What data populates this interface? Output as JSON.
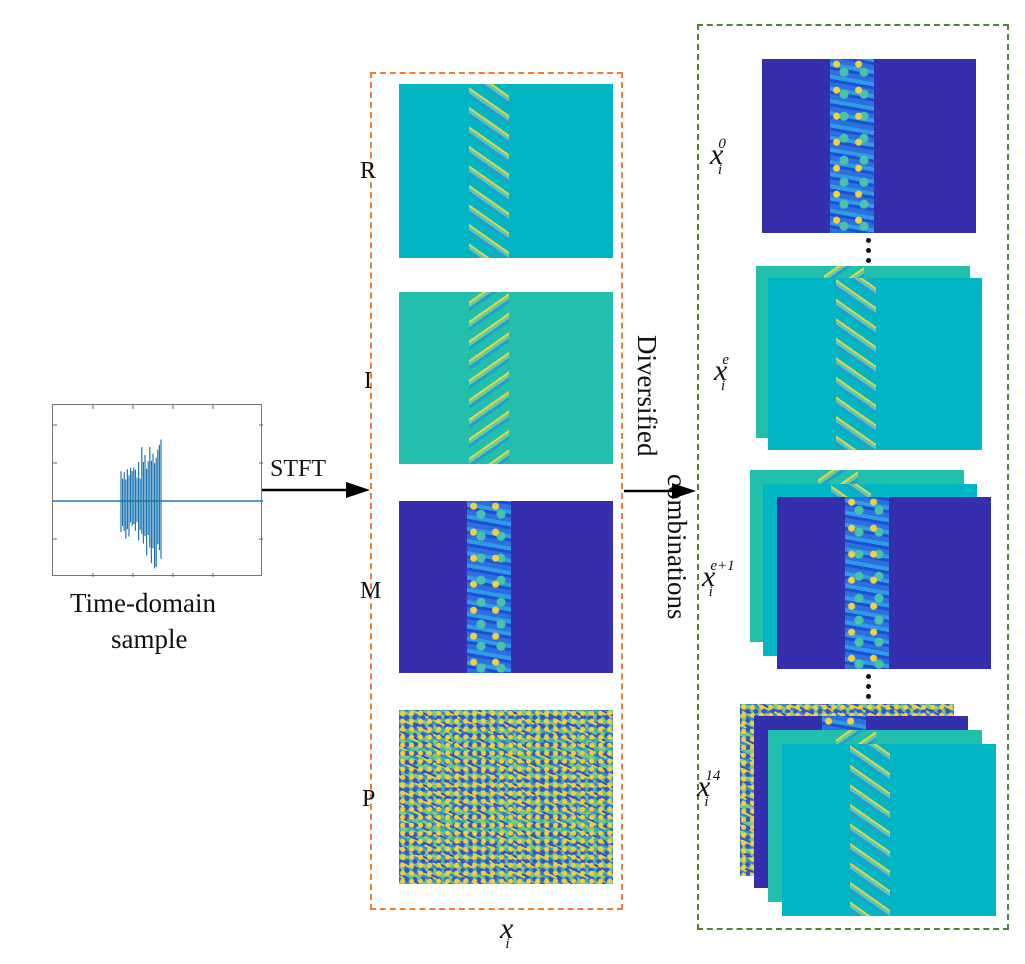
{
  "signal": {
    "caption_line1": "Time-domain",
    "caption_line2": "sample"
  },
  "transform": {
    "arrow_label": "STFT"
  },
  "channels": {
    "labels": [
      "R",
      "I",
      "M",
      "P"
    ],
    "group_symbol": "x",
    "group_subscript": "i"
  },
  "combination": {
    "arrow_label_line1": "Diversified",
    "arrow_label_line2": "combinations"
  },
  "outputs": [
    {
      "symbol": "x",
      "subscript": "i",
      "superscript": "0"
    },
    {
      "symbol": "x",
      "subscript": "i",
      "superscript": "e"
    },
    {
      "symbol": "x",
      "subscript": "i",
      "superscript": "e+1"
    },
    {
      "symbol": "x",
      "subscript": "i",
      "superscript": "14"
    }
  ],
  "colors": {
    "real_bg": "#00b5c4",
    "imag_bg": "#22c0ac",
    "magnitude_bg": "#352fad",
    "band_blue": "#2c6fe0",
    "band_yellow": "#f2d13a",
    "signal_line": "#1f77b4",
    "orange_frame": "#ee7d31",
    "green_frame": "#548235"
  }
}
